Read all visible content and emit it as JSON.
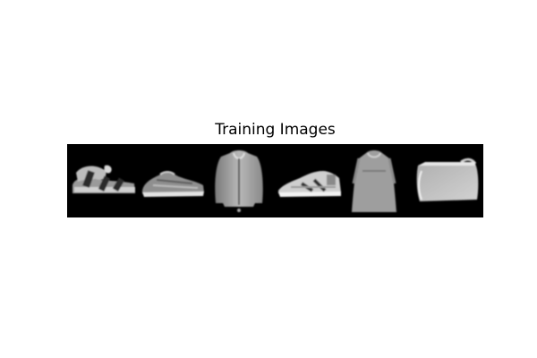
{
  "title": "Training Images",
  "strip": {
    "background": "#000000",
    "tiles": [
      {
        "icon": "sandal-icon"
      },
      {
        "icon": "sneaker-icon"
      },
      {
        "icon": "coat-icon"
      },
      {
        "icon": "sneaker-icon"
      },
      {
        "icon": "dress-icon"
      },
      {
        "icon": "bag-icon"
      }
    ]
  }
}
